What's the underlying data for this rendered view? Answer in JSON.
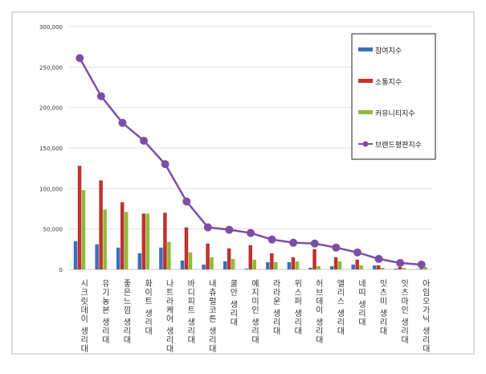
{
  "chart_data": {
    "type": "bar+line",
    "title": "",
    "xlabel": "",
    "ylabel": "",
    "ylim": [
      0,
      300000
    ],
    "yticks": [
      "0",
      "50,000",
      "100,000",
      "150,000",
      "200,000",
      "250,000",
      "300,000"
    ],
    "grid": true,
    "legend_position": "top-right",
    "categories": [
      "시크릿데이 생리대",
      "유기농본 생리대",
      "좋은느낌 생리대",
      "화이트 생리대",
      "나트라케어 생리대",
      "바디피트 생리대",
      "내츄럴코튼 생리대",
      "쿨만 생리대",
      "예지미인 생리대",
      "라라운 생리대",
      "위스퍼 생리대",
      "허브데이 생리대",
      "앨리스 생리대",
      "네띠 생리대",
      "잇츠미 생리대",
      "잇츠마인 생리대",
      "아임오가닉 생리대"
    ],
    "series": [
      {
        "name": "참여지수",
        "kind": "bar",
        "color": "#3a6fbf",
        "values": [
          35000,
          31000,
          27000,
          20000,
          27000,
          11000,
          6000,
          10000,
          1000,
          9000,
          9000,
          2000,
          4000,
          6000,
          5000,
          1000,
          500
        ]
      },
      {
        "name": "소통지수",
        "kind": "bar",
        "color": "#c0312f",
        "values": [
          128000,
          110000,
          83000,
          69000,
          70000,
          52000,
          32000,
          26000,
          30000,
          20000,
          15000,
          25000,
          15000,
          12000,
          5000,
          3000,
          1000
        ]
      },
      {
        "name": "커뮤니티지수",
        "kind": "bar",
        "color": "#8fbb3a",
        "values": [
          98000,
          74000,
          71000,
          69000,
          34000,
          21000,
          15000,
          13000,
          12000,
          9000,
          10000,
          4000,
          10000,
          5000,
          2000,
          2000,
          3000
        ]
      },
      {
        "name": "브랜드평판지수",
        "kind": "line",
        "color": "#7b4fa6",
        "values": [
          261000,
          214000,
          181000,
          159000,
          130000,
          84000,
          52000,
          49000,
          45000,
          37000,
          33000,
          32000,
          27000,
          21000,
          13000,
          8000,
          6000
        ]
      }
    ]
  }
}
